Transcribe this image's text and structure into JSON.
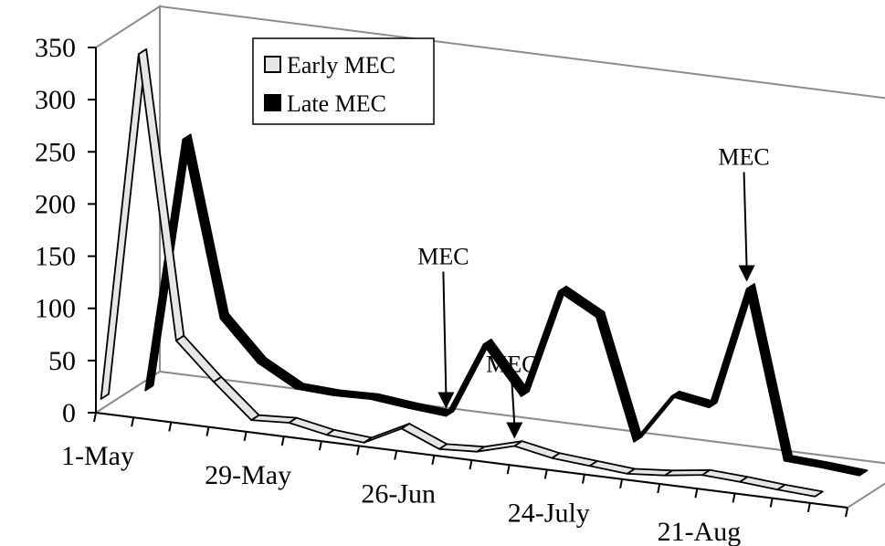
{
  "chart_data": {
    "type": "line",
    "style": "3d-ribbon",
    "title": "",
    "xlabel": "",
    "ylabel": "",
    "ylim": [
      0,
      350
    ],
    "yticks": [
      0,
      50,
      100,
      150,
      200,
      250,
      300,
      350
    ],
    "x_tick_labels": [
      "1-May",
      "29-May",
      "26-Jun",
      "24-July",
      "21-Aug"
    ],
    "x_tick_label_indices": [
      0,
      4,
      8,
      12,
      16
    ],
    "n_points": 20,
    "grid": false,
    "legend_position": "top-left",
    "series": [
      {
        "name": "Late MEC",
        "color": "#000000",
        "values": [
          0,
          245,
          78,
          40,
          20,
          18,
          19,
          15,
          12,
          85,
          40,
          145,
          125,
          10,
          58,
          52,
          170,
          10,
          8,
          5
        ]
      },
      {
        "name": "Early MEC",
        "color": "#e6e6e6",
        "values": [
          10,
          345,
          75,
          40,
          8,
          10,
          3,
          0,
          18,
          3,
          5,
          15,
          8,
          5,
          2,
          5,
          10,
          8,
          5,
          3
        ]
      }
    ],
    "annotations": [
      {
        "text": "MEC",
        "series": "Late MEC",
        "index": 8
      },
      {
        "text": "MEC",
        "series": "Early MEC",
        "index": 11
      },
      {
        "text": "MEC",
        "series": "Late MEC",
        "index": 16
      }
    ]
  }
}
